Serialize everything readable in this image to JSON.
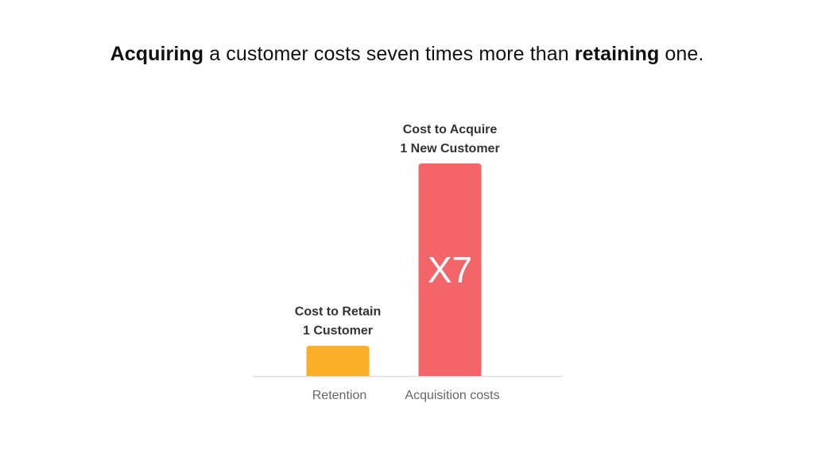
{
  "headline": {
    "part1_bold": "Acquiring",
    "part2": " a customer costs seven times more than ",
    "part3_bold": "retaining",
    "part4": " one."
  },
  "colors": {
    "retention": "#FBAE28",
    "acquisition": "#F36568",
    "axis": "#DDDDDD"
  },
  "chart_data": {
    "type": "bar",
    "title": "",
    "xlabel": "",
    "ylabel": "",
    "categories": [
      "Retention",
      "Acquisition costs"
    ],
    "values": [
      1,
      7
    ],
    "ylim": [
      0,
      7
    ],
    "grid": false,
    "legend": "none",
    "bar_labels": [
      [
        "Cost to Retain",
        "1 Customer"
      ],
      [
        "Cost to Acquire",
        "1 New Customer"
      ]
    ],
    "inner_labels": [
      "",
      "X7"
    ]
  }
}
